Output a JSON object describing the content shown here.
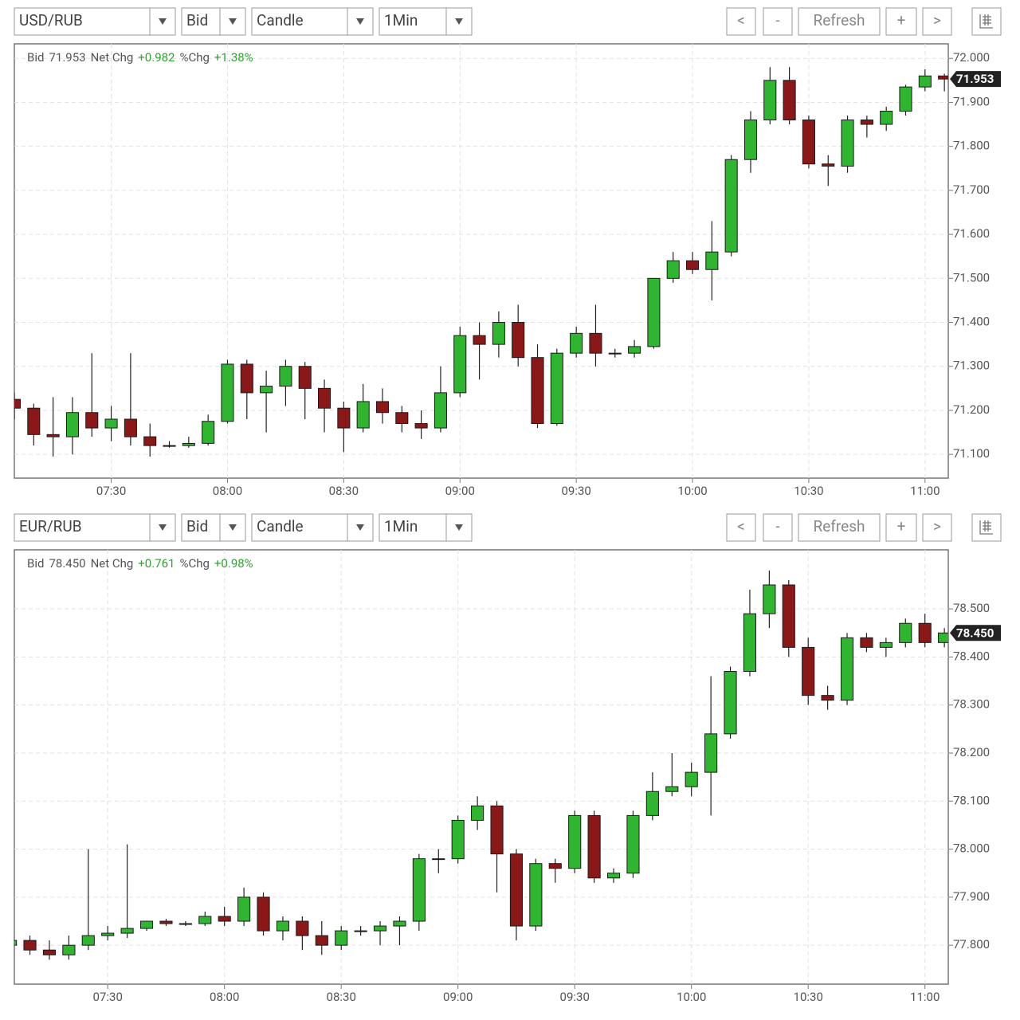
{
  "chart_data": [
    {
      "type": "candlestick",
      "toolbar": {
        "pair": "USD/RUB",
        "side": "Bid",
        "style": "Candle",
        "interval": "1Min",
        "prev": "<",
        "minus": "-",
        "refresh": "Refresh",
        "plus": "+",
        "next": ">"
      },
      "header": {
        "bid_label": "Bid",
        "net_label": "Net Chg",
        "net": "+0.982",
        "pct_label": "%Chg",
        "pct": "+1.38%"
      },
      "last": {
        "value": 71.953,
        "label": "71.953"
      },
      "up_color": "#2fb52f",
      "down_color": "#8b1818",
      "xlim": [
        "07:05",
        "11:06"
      ],
      "xticks": [
        "07:30",
        "08:00",
        "08:30",
        "09:00",
        "09:30",
        "10:00",
        "10:30",
        "11:00"
      ],
      "ylim": [
        71.046,
        72.033
      ],
      "yticks": [
        {
          "value": 71.1,
          "label": "71.100"
        },
        {
          "value": 71.2,
          "label": "71.200"
        },
        {
          "value": 71.3,
          "label": "71.300"
        },
        {
          "value": 71.4,
          "label": "71.400"
        },
        {
          "value": 71.5,
          "label": "71.500"
        },
        {
          "value": 71.6,
          "label": "71.600"
        },
        {
          "value": 71.7,
          "label": "71.700"
        },
        {
          "value": 71.8,
          "label": "71.800"
        },
        {
          "value": 71.9,
          "label": "71.900"
        },
        {
          "value": 72.0,
          "label": "72.000"
        }
      ],
      "grid": true,
      "x": [
        "07:05",
        "07:10",
        "07:15",
        "07:20",
        "07:25",
        "07:30",
        "07:35",
        "07:40",
        "07:45",
        "07:50",
        "07:55",
        "08:00",
        "08:05",
        "08:10",
        "08:15",
        "08:20",
        "08:25",
        "08:30",
        "08:35",
        "08:40",
        "08:45",
        "08:50",
        "08:55",
        "09:00",
        "09:05",
        "09:10",
        "09:15",
        "09:20",
        "09:25",
        "09:30",
        "09:35",
        "09:40",
        "09:45",
        "09:50",
        "09:55",
        "10:00",
        "10:05",
        "10:10",
        "10:15",
        "10:20",
        "10:25",
        "10:30",
        "10:35",
        "10:40",
        "10:45",
        "10:50",
        "10:55",
        "11:00",
        "11:05"
      ],
      "open": [
        71.225,
        71.205,
        71.145,
        71.14,
        71.195,
        71.16,
        71.18,
        71.14,
        71.12,
        71.12,
        71.125,
        71.175,
        71.305,
        71.24,
        71.255,
        71.3,
        71.25,
        71.205,
        71.16,
        71.22,
        71.195,
        71.17,
        71.16,
        71.24,
        71.37,
        71.35,
        71.4,
        71.32,
        71.17,
        71.33,
        71.375,
        71.33,
        71.33,
        71.345,
        71.5,
        71.54,
        71.52,
        71.56,
        71.77,
        71.86,
        71.95,
        71.86,
        71.76,
        71.755,
        71.86,
        71.85,
        71.88,
        71.935,
        71.96
      ],
      "high": [
        71.24,
        71.215,
        71.23,
        71.23,
        71.33,
        71.21,
        71.33,
        71.17,
        71.13,
        71.14,
        71.19,
        71.315,
        71.315,
        71.29,
        71.315,
        71.31,
        71.27,
        71.22,
        71.26,
        71.25,
        71.21,
        71.2,
        71.3,
        71.39,
        71.4,
        71.425,
        71.44,
        71.35,
        71.34,
        71.39,
        71.44,
        71.34,
        71.36,
        71.5,
        71.56,
        71.56,
        71.63,
        71.78,
        71.88,
        71.98,
        71.98,
        71.87,
        71.78,
        71.87,
        71.87,
        71.89,
        71.94,
        71.975,
        71.965
      ],
      "low": [
        71.18,
        71.12,
        71.095,
        71.1,
        71.14,
        71.13,
        71.12,
        71.095,
        71.115,
        71.115,
        71.12,
        71.17,
        71.18,
        71.15,
        71.21,
        71.18,
        71.15,
        71.105,
        71.15,
        71.17,
        71.15,
        71.135,
        71.15,
        71.23,
        71.27,
        71.32,
        71.3,
        71.16,
        71.165,
        71.32,
        71.3,
        71.32,
        71.32,
        71.34,
        71.49,
        71.51,
        71.45,
        71.55,
        71.74,
        71.85,
        71.85,
        71.75,
        71.71,
        71.74,
        71.82,
        71.835,
        71.87,
        71.925,
        71.925
      ],
      "close": [
        71.205,
        71.145,
        71.14,
        71.195,
        71.16,
        71.18,
        71.14,
        71.12,
        71.12,
        71.125,
        71.175,
        71.305,
        71.24,
        71.255,
        71.3,
        71.25,
        71.205,
        71.16,
        71.22,
        71.195,
        71.17,
        71.16,
        71.24,
        71.37,
        71.35,
        71.4,
        71.32,
        71.17,
        71.33,
        71.375,
        71.33,
        71.33,
        71.345,
        71.5,
        71.54,
        71.52,
        71.56,
        71.77,
        71.86,
        71.95,
        71.86,
        71.76,
        71.755,
        71.86,
        71.85,
        71.88,
        71.935,
        71.96,
        71.953
      ]
    },
    {
      "type": "candlestick",
      "toolbar": {
        "pair": "EUR/RUB",
        "side": "Bid",
        "style": "Candle",
        "interval": "1Min",
        "prev": "<",
        "minus": "-",
        "refresh": "Refresh",
        "plus": "+",
        "next": ">"
      },
      "header": {
        "bid_label": "Bid",
        "net_label": "Net Chg",
        "net": "+0.761",
        "pct_label": "%Chg",
        "pct": "+0.98%"
      },
      "last": {
        "value": 78.45,
        "label": "78.450"
      },
      "up_color": "#2fb52f",
      "down_color": "#8b1818",
      "xlim": [
        "07:06",
        "11:06"
      ],
      "xticks": [
        "07:30",
        "08:00",
        "08:30",
        "09:00",
        "09:30",
        "10:00",
        "10:30",
        "11:00"
      ],
      "ylim": [
        77.719,
        78.623
      ],
      "yticks": [
        {
          "value": 77.8,
          "label": "77.800"
        },
        {
          "value": 77.9,
          "label": "77.900"
        },
        {
          "value": 78.0,
          "label": "78.000"
        },
        {
          "value": 78.1,
          "label": "78.100"
        },
        {
          "value": 78.2,
          "label": "78.200"
        },
        {
          "value": 78.3,
          "label": "78.300"
        },
        {
          "value": 78.4,
          "label": "78.400"
        },
        {
          "value": 78.5,
          "label": "78.500"
        }
      ],
      "grid": true,
      "x": [
        "07:05",
        "07:10",
        "07:15",
        "07:20",
        "07:25",
        "07:30",
        "07:35",
        "07:40",
        "07:45",
        "07:50",
        "07:55",
        "08:00",
        "08:05",
        "08:10",
        "08:15",
        "08:20",
        "08:25",
        "08:30",
        "08:35",
        "08:40",
        "08:45",
        "08:50",
        "08:55",
        "09:00",
        "09:05",
        "09:10",
        "09:15",
        "09:20",
        "09:25",
        "09:30",
        "09:35",
        "09:40",
        "09:45",
        "09:50",
        "09:55",
        "10:00",
        "10:05",
        "10:10",
        "10:15",
        "10:20",
        "10:25",
        "10:30",
        "10:35",
        "10:40",
        "10:45",
        "10:50",
        "10:55",
        "11:00",
        "11:05"
      ],
      "open": [
        77.8,
        77.81,
        77.79,
        77.78,
        77.8,
        77.82,
        77.825,
        77.835,
        77.85,
        77.845,
        77.845,
        77.86,
        77.85,
        77.9,
        77.83,
        77.85,
        77.82,
        77.8,
        77.83,
        77.83,
        77.84,
        77.85,
        77.98,
        77.98,
        78.06,
        78.09,
        77.99,
        77.84,
        77.97,
        77.96,
        78.07,
        77.94,
        77.95,
        78.07,
        78.12,
        78.13,
        78.16,
        78.24,
        78.37,
        78.49,
        78.55,
        78.42,
        78.32,
        78.31,
        78.44,
        78.42,
        78.43,
        78.47,
        78.43
      ],
      "high": [
        77.83,
        77.82,
        77.81,
        77.82,
        78.0,
        77.84,
        78.01,
        77.85,
        77.855,
        77.85,
        77.87,
        77.88,
        77.92,
        77.91,
        77.86,
        77.86,
        77.85,
        77.84,
        77.84,
        77.85,
        77.86,
        77.99,
        78.0,
        78.07,
        78.11,
        78.1,
        78.0,
        77.98,
        77.98,
        78.08,
        78.08,
        77.96,
        78.08,
        78.16,
        78.2,
        78.18,
        78.36,
        78.38,
        78.54,
        78.58,
        78.56,
        78.44,
        78.34,
        78.45,
        78.45,
        78.44,
        78.48,
        78.49,
        78.46
      ],
      "low": [
        77.76,
        77.78,
        77.77,
        77.77,
        77.79,
        77.81,
        77.815,
        77.83,
        77.84,
        77.84,
        77.84,
        77.84,
        77.84,
        77.82,
        77.81,
        77.79,
        77.78,
        77.79,
        77.82,
        77.8,
        77.8,
        77.83,
        77.95,
        77.97,
        78.04,
        77.91,
        77.81,
        77.83,
        77.93,
        77.95,
        77.93,
        77.93,
        77.94,
        78.06,
        78.11,
        78.11,
        78.07,
        78.23,
        78.36,
        78.46,
        78.4,
        78.3,
        78.29,
        78.3,
        78.41,
        78.4,
        78.42,
        78.42,
        78.42
      ],
      "close": [
        77.81,
        77.79,
        77.78,
        77.8,
        77.82,
        77.825,
        77.835,
        77.85,
        77.845,
        77.845,
        77.86,
        77.85,
        77.9,
        77.83,
        77.85,
        77.82,
        77.8,
        77.83,
        77.83,
        77.84,
        77.85,
        77.98,
        77.98,
        78.06,
        78.09,
        77.99,
        77.84,
        77.97,
        77.96,
        78.07,
        77.94,
        77.95,
        78.07,
        78.12,
        78.13,
        78.16,
        78.24,
        78.37,
        78.49,
        78.55,
        78.42,
        78.32,
        78.31,
        78.44,
        78.42,
        78.43,
        78.47,
        78.43,
        78.45
      ]
    }
  ]
}
